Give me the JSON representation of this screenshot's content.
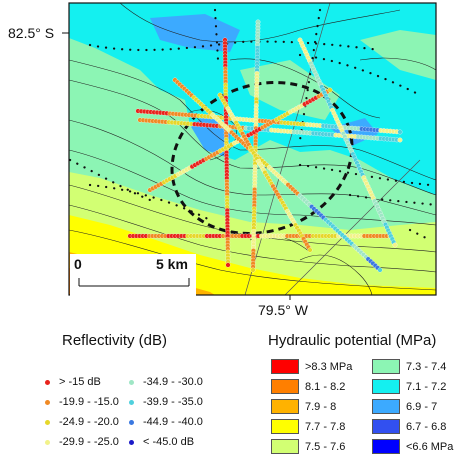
{
  "map": {
    "lat_label": "82.5° S",
    "lon_label": "79.5° W",
    "scale": {
      "start_label": "0",
      "end_label": "5 km"
    }
  },
  "legend_reflectivity": {
    "title": "Reflectivity (dB)",
    "items": [
      {
        "label": "> -15 dB",
        "color": "#e8231c"
      },
      {
        "label": "-19.9 - -15.0",
        "color": "#f08a24"
      },
      {
        "label": "-24.9 - -20.0",
        "color": "#e6d72a"
      },
      {
        "label": "-29.9 - -25.0",
        "color": "#f2f28a"
      },
      {
        "label": "-34.9 - -30.0",
        "color": "#9fe6c5"
      },
      {
        "label": "-39.9 - -35.0",
        "color": "#4fd0dd"
      },
      {
        "label": "-44.9 - -40.0",
        "color": "#3a78e0"
      },
      {
        "label": "< -45.0 dB",
        "color": "#1a1ac8"
      }
    ]
  },
  "legend_hydraulic": {
    "title": "Hydraulic potential (MPa)",
    "items": [
      {
        "label": ">8.3 MPa",
        "color": "#ff0000"
      },
      {
        "label": "8.1 - 8.2",
        "color": "#ff7f00"
      },
      {
        "label": "7.9 - 8",
        "color": "#ffb200"
      },
      {
        "label": "7.7 - 7.8",
        "color": "#ffff00"
      },
      {
        "label": "7.5 - 7.6",
        "color": "#d2ff73"
      },
      {
        "label": "7.3 - 7.4",
        "color": "#8cf5b4"
      },
      {
        "label": "7.1 - 7.2",
        "color": "#14f0f0"
      },
      {
        "label": "6.9 - 7",
        "color": "#3caaff"
      },
      {
        "label": "6.7 - 6.8",
        "color": "#3250f0"
      },
      {
        "label": "<6.6 MPa",
        "color": "#0000ff"
      }
    ]
  }
}
